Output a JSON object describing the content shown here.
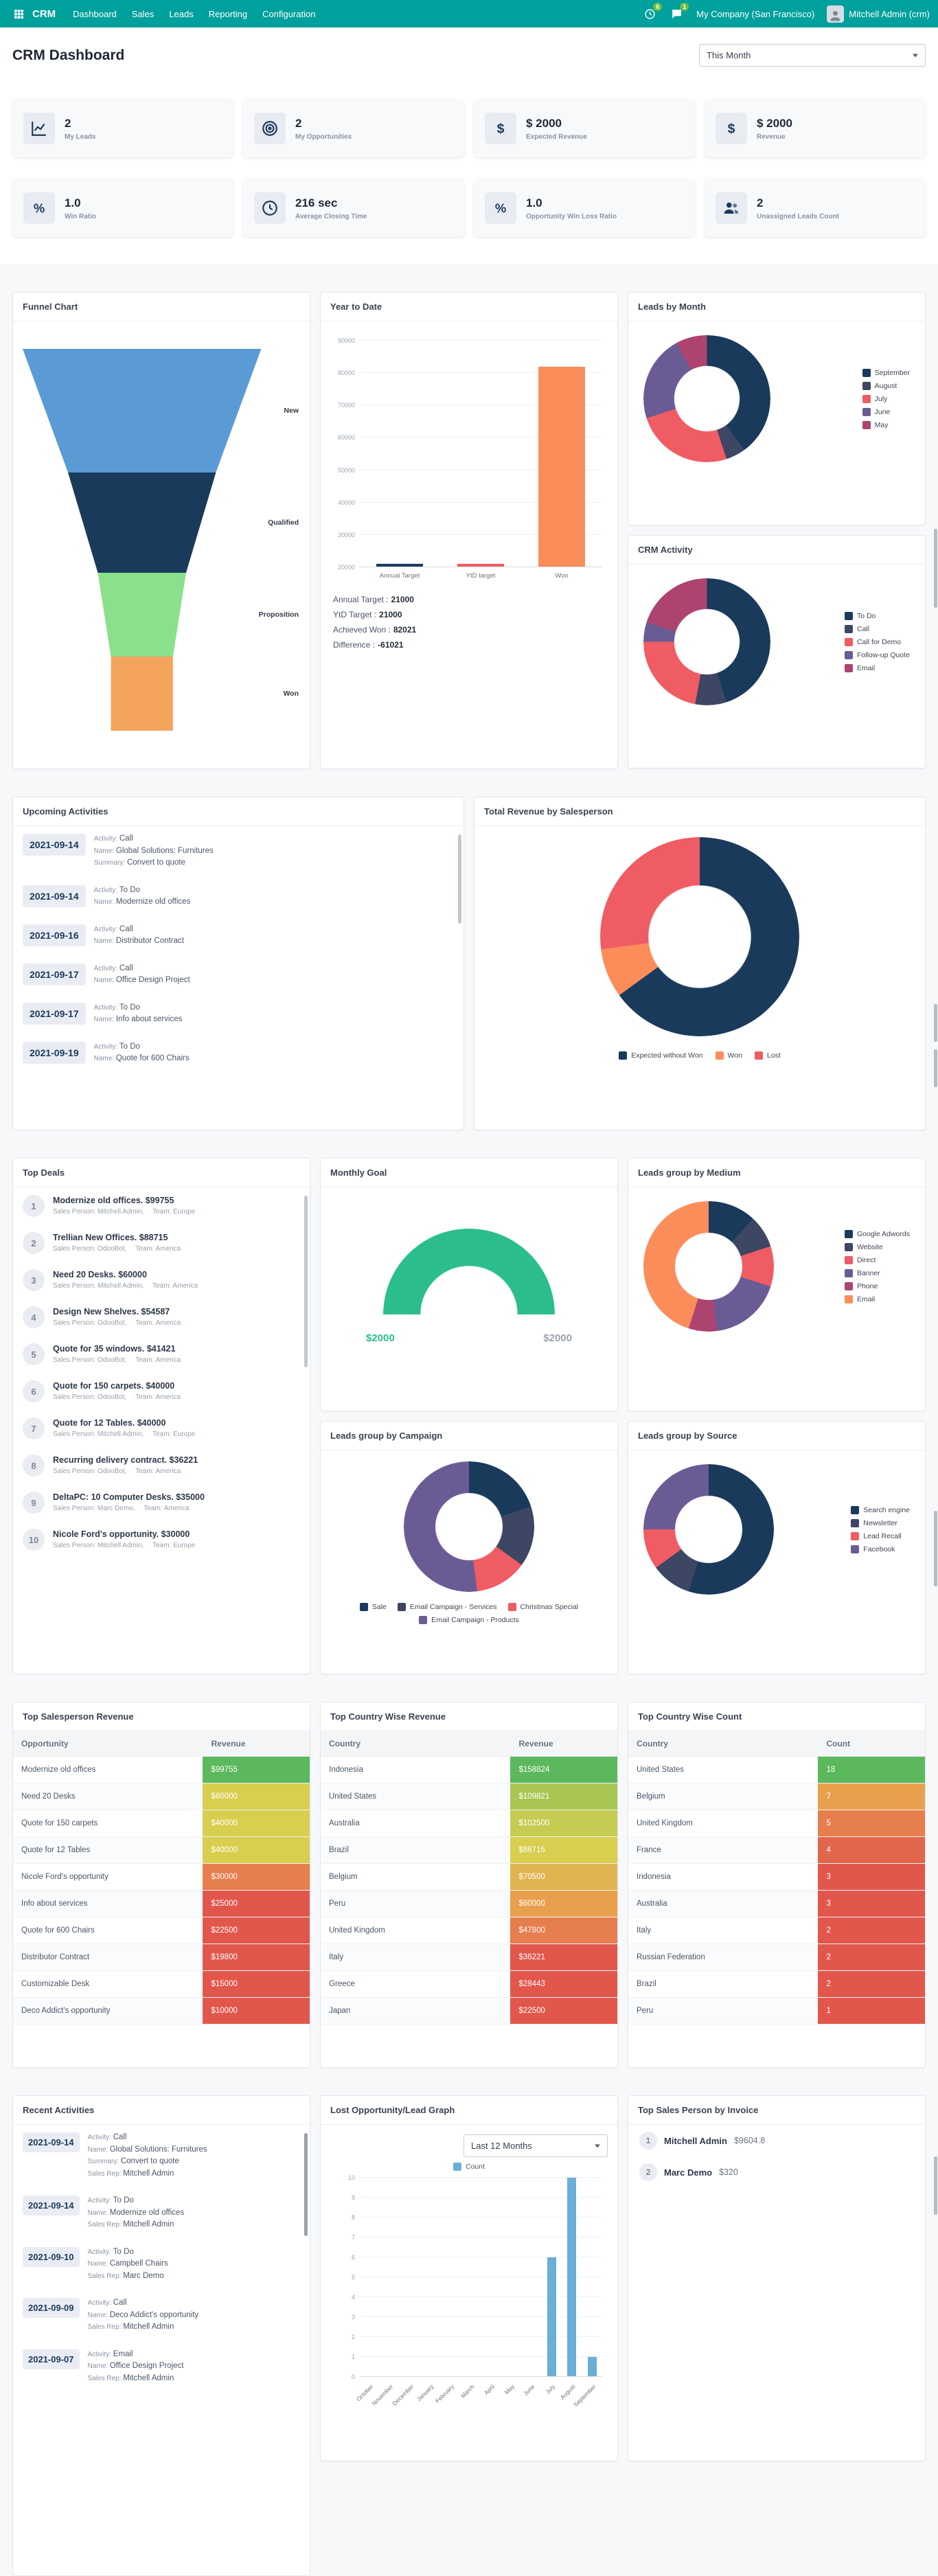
{
  "theme": {
    "navbar_bg": "#00A09D"
  },
  "navbar": {
    "brand": "CRM",
    "menu": [
      {
        "label": "Dashboard"
      },
      {
        "label": "Sales"
      },
      {
        "label": "Leads"
      },
      {
        "label": "Reporting"
      },
      {
        "label": "Configuration"
      }
    ],
    "activities_badge": "6",
    "messages_badge": "1",
    "company": "My Company (San Francisco)",
    "user": "Mitchell Admin (crm)"
  },
  "header": {
    "title": "CRM Dashboard",
    "period": "This Month"
  },
  "labels": {
    "activity": "Activity:",
    "name": "Name:",
    "summary": "Summary:",
    "sales_rep": "Sales Rep:",
    "sales_person": "Sales Person:",
    "team": "Team:"
  },
  "kpis": [
    {
      "icon": "line-chart-icon",
      "value": "2",
      "label": "My Leads"
    },
    {
      "icon": "bullseye-icon",
      "value": "2",
      "label": "My Opportunities"
    },
    {
      "icon": "dollar-icon",
      "value": "$ 2000",
      "label": "Expected Revenue"
    },
    {
      "icon": "dollar-icon",
      "value": "$ 2000",
      "label": "Revenue"
    },
    {
      "icon": "percent-icon",
      "value": "1.0",
      "label": "Win Ratio"
    },
    {
      "icon": "clock-icon",
      "value": "216 sec",
      "label": "Average Closing Time"
    },
    {
      "icon": "percent-icon",
      "value": "1.0",
      "label": "Opportunity Win Loss Ratio"
    },
    {
      "icon": "users-icon",
      "value": "2",
      "label": "Unassigned Leads Count"
    }
  ],
  "funnel": {
    "title": "Funnel Chart",
    "stages": [
      {
        "label": "New",
        "color": "#5B9BD5"
      },
      {
        "label": "Qualified",
        "color": "#1A3A5C"
      },
      {
        "label": "Proposition",
        "color": "#8BE08B"
      },
      {
        "label": "Won",
        "color": "#F5A45D"
      }
    ]
  },
  "year_to_date": {
    "title": "Year to Date",
    "chart": {
      "y_min": 20000,
      "y_max": 90000,
      "y_step": 10000,
      "bar_width": "58%",
      "bars": [
        {
          "label": "Annual Target",
          "value": 21000,
          "color": "#1A3A5C"
        },
        {
          "label": "YtD target",
          "value": 21000,
          "color": "#F05C63"
        },
        {
          "label": "Won",
          "value": 82021,
          "color": "#FB8D5B"
        }
      ]
    },
    "summary": [
      {
        "label": "Annual Target :",
        "value": "21000"
      },
      {
        "label": "YtD Target :",
        "value": "21000"
      },
      {
        "label": "Achieved Won :",
        "value": "82021"
      },
      {
        "label": "Difference :",
        "value": "-61021"
      }
    ]
  },
  "leads_by_month": {
    "title": "Leads by Month",
    "slices": [
      {
        "label": "September",
        "color": "#1A3A5C",
        "value": 40
      },
      {
        "label": "August",
        "color": "#3D4663",
        "value": 5
      },
      {
        "label": "July",
        "color": "#F05C63",
        "value": 25
      },
      {
        "label": "June",
        "color": "#6B5B95",
        "value": 22
      },
      {
        "label": "May",
        "color": "#AD4470",
        "value": 8
      }
    ]
  },
  "crm_activity": {
    "title": "CRM Activity",
    "slices": [
      {
        "label": "To Do",
        "color": "#1A3A5C",
        "value": 45
      },
      {
        "label": "Call",
        "color": "#3D4663",
        "value": 8
      },
      {
        "label": "Call for Demo",
        "color": "#F05C63",
        "value": 22
      },
      {
        "label": "Follow-up Quote",
        "color": "#6B5B95",
        "value": 5
      },
      {
        "label": "Email",
        "color": "#AD4470",
        "value": 20
      }
    ]
  },
  "upcoming_activities": {
    "title": "Upcoming Activities",
    "items": [
      {
        "date": "2021-09-14",
        "activity": "Call",
        "name": "Global Solutions: Furnitures",
        "summary": "Convert to quote"
      },
      {
        "date": "2021-09-14",
        "activity": "To Do",
        "name": "Modernize old offices"
      },
      {
        "date": "2021-09-16",
        "activity": "Call",
        "name": "Distributor Contract"
      },
      {
        "date": "2021-09-17",
        "activity": "Call",
        "name": "Office Design Project"
      },
      {
        "date": "2021-09-17",
        "activity": "To Do",
        "name": "Info about services"
      },
      {
        "date": "2021-09-19",
        "activity": "To Do",
        "name": "Quote for 600 Chairs"
      }
    ]
  },
  "total_revenue_by_salesperson": {
    "title": "Total Revenue by Salesperson",
    "slices": [
      {
        "label": "Expected without Won",
        "color": "#1A3A5C",
        "value": 65
      },
      {
        "label": "Won",
        "color": "#FB8D5B",
        "value": 8
      },
      {
        "label": "Lost",
        "color": "#F05C63",
        "value": 27
      }
    ]
  },
  "top_deals": {
    "title": "Top Deals",
    "items": [
      {
        "rank": "1",
        "title": "Modernize old offices. $99755",
        "sales_person": "Mitchell Admin,",
        "team": "Europe"
      },
      {
        "rank": "2",
        "title": "Trellian New Offices. $88715",
        "sales_person": "OdooBot,",
        "team": "America"
      },
      {
        "rank": "3",
        "title": "Need 20 Desks. $60000",
        "sales_person": "Mitchell Admin,",
        "team": "America"
      },
      {
        "rank": "4",
        "title": "Design New Shelves. $54587",
        "sales_person": "OdooBot,",
        "team": "America"
      },
      {
        "rank": "5",
        "title": "Quote for 35 windows. $41421",
        "sales_person": "OdooBot,",
        "team": "America"
      },
      {
        "rank": "6",
        "title": "Quote for 150 carpets. $40000",
        "sales_person": "OdooBot,",
        "team": "America"
      },
      {
        "rank": "7",
        "title": "Quote for 12 Tables. $40000",
        "sales_person": "Mitchell Admin,",
        "team": "Europe"
      },
      {
        "rank": "8",
        "title": "Recurring delivery contract. $36221",
        "sales_person": "OdooBot,",
        "team": "America"
      },
      {
        "rank": "9",
        "title": "DeltaPC: 10 Computer Desks. $35000",
        "sales_person": "Marc Demo,",
        "team": "America"
      },
      {
        "rank": "10",
        "title": "Nicole Ford's opportunity. $30000",
        "sales_person": "Mitchell Admin,",
        "team": "Europe"
      }
    ]
  },
  "monthly_goal": {
    "title": "Monthly Goal",
    "left_value": "$2000",
    "right_value": "$2000",
    "gauge_color": "#2BBE8C"
  },
  "leads_by_campaign": {
    "title": "Leads group by Campaign",
    "slices": [
      {
        "label": "Sale",
        "color": "#1A3A5C",
        "value": 20
      },
      {
        "label": "Email Campaign - Services",
        "color": "#3D4663",
        "value": 15
      },
      {
        "label": "Christmas Special",
        "color": "#F05C63",
        "value": 13
      },
      {
        "label": "Email Campaign - Products",
        "color": "#6B5B95",
        "value": 52
      }
    ]
  },
  "leads_by_medium": {
    "title": "Leads group by Medium",
    "slices": [
      {
        "label": "Google Adwords",
        "color": "#1A3A5C",
        "value": 12
      },
      {
        "label": "Website",
        "color": "#3D4663",
        "value": 8
      },
      {
        "label": "Direct",
        "color": "#F05C63",
        "value": 10
      },
      {
        "label": "Banner",
        "color": "#6B5B95",
        "value": 18
      },
      {
        "label": "Phone",
        "color": "#AD4470",
        "value": 7
      },
      {
        "label": "Email",
        "color": "#FB8D5B",
        "value": 45
      }
    ]
  },
  "leads_by_source": {
    "title": "Leads group by Source",
    "slices": [
      {
        "label": "Search engine",
        "color": "#1A3A5C",
        "value": 55
      },
      {
        "label": "Newsletter",
        "color": "#3D4663",
        "value": 10
      },
      {
        "label": "Lead Recall",
        "color": "#F05C63",
        "value": 10
      },
      {
        "label": "Facebook",
        "color": "#6B5B95",
        "value": 25
      }
    ]
  },
  "tables": {
    "salesperson_revenue": {
      "title": "Top Salesperson Revenue",
      "columns": [
        "Opportunity",
        "Revenue"
      ],
      "rows": [
        {
          "name": "Modernize old offices",
          "value": "$99755",
          "color": "#5CB85C"
        },
        {
          "name": "Need 20 Desks",
          "value": "$60000",
          "color": "#D8CE4F"
        },
        {
          "name": "Quote for 150 carpets",
          "value": "$40000",
          "color": "#D8CE4F"
        },
        {
          "name": "Quote for 12 Tables",
          "value": "$40000",
          "color": "#D8CE4F"
        },
        {
          "name": "Nicole Ford's opportunity",
          "value": "$30000",
          "color": "#E67E4D"
        },
        {
          "name": "Info about services",
          "value": "$25000",
          "color": "#E2574C"
        },
        {
          "name": "Quote for 600 Chairs",
          "value": "$22500",
          "color": "#E2574C"
        },
        {
          "name": "Distributor Contract",
          "value": "$19800",
          "color": "#E2574C"
        },
        {
          "name": "Customizable Desk",
          "value": "$15000",
          "color": "#E2574C"
        },
        {
          "name": "Deco Addict's opportunity",
          "value": "$10000",
          "color": "#E2574C"
        }
      ]
    },
    "country_revenue": {
      "title": "Top Country Wise Revenue",
      "columns": [
        "Country",
        "Revenue"
      ],
      "rows": [
        {
          "name": "Indonesia",
          "value": "$158824",
          "color": "#5CB85C"
        },
        {
          "name": "United States",
          "value": "$109821",
          "color": "#A9C653"
        },
        {
          "name": "Australia",
          "value": "$102500",
          "color": "#C6CB51"
        },
        {
          "name": "Brazil",
          "value": "$88715",
          "color": "#D8CE4F"
        },
        {
          "name": "Belgium",
          "value": "$70500",
          "color": "#E0B44E"
        },
        {
          "name": "Peru",
          "value": "$60000",
          "color": "#E8A04C"
        },
        {
          "name": "United Kingdom",
          "value": "$47800",
          "color": "#E67E4D"
        },
        {
          "name": "Italy",
          "value": "$36221",
          "color": "#E2574C"
        },
        {
          "name": "Greece",
          "value": "$28443",
          "color": "#E2574C"
        },
        {
          "name": "Japan",
          "value": "$22500",
          "color": "#E2574C"
        }
      ]
    },
    "country_count": {
      "title": "Top Country Wise Count",
      "columns": [
        "Country",
        "Count"
      ],
      "rows": [
        {
          "name": "United States",
          "value": "18",
          "color": "#5CB85C"
        },
        {
          "name": "Belgium",
          "value": "7",
          "color": "#E8A04C"
        },
        {
          "name": "United Kingdom",
          "value": "5",
          "color": "#E67E4D"
        },
        {
          "name": "France",
          "value": "4",
          "color": "#E2664C"
        },
        {
          "name": "Indonesia",
          "value": "3",
          "color": "#E2574C"
        },
        {
          "name": "Australia",
          "value": "3",
          "color": "#E2574C"
        },
        {
          "name": "Italy",
          "value": "2",
          "color": "#E2574C"
        },
        {
          "name": "Russian Federation",
          "value": "2",
          "color": "#E2574C"
        },
        {
          "name": "Brazil",
          "value": "2",
          "color": "#E2574C"
        },
        {
          "name": "Peru",
          "value": "1",
          "color": "#E2574C"
        }
      ]
    }
  },
  "recent_activities": {
    "title": "Recent Activities",
    "items": [
      {
        "date": "2021-09-14",
        "activity": "Call",
        "name": "Global Solutions: Furnitures",
        "summary": "Convert to quote",
        "sales_rep": "Mitchell Admin"
      },
      {
        "date": "2021-09-14",
        "activity": "To Do",
        "name": "Modernize old offices",
        "sales_rep": "Mitchell Admin"
      },
      {
        "date": "2021-09-10",
        "activity": "To Do",
        "name": "Campbell Chairs",
        "sales_rep": "Marc Demo"
      },
      {
        "date": "2021-09-09",
        "activity": "Call",
        "name": "Deco Addict's opportunity",
        "sales_rep": "Mitchell Admin"
      },
      {
        "date": "2021-09-07",
        "activity": "Email",
        "name": "Office Design Project",
        "sales_rep": "Mitchell Admin"
      }
    ]
  },
  "lost_graph": {
    "title": "Lost Opportunity/Lead Graph",
    "period": "Last 12 Months",
    "legend": "Count",
    "chart": {
      "y_min": 0,
      "y_max": 10,
      "y_step": 1,
      "rotate_labels": true,
      "bar_width": "45%",
      "bar_color": "#6BAED6",
      "bars": [
        {
          "label": "October",
          "value": 0
        },
        {
          "label": "November",
          "value": 0
        },
        {
          "label": "December",
          "value": 0
        },
        {
          "label": "January",
          "value": 0
        },
        {
          "label": "February",
          "value": 0
        },
        {
          "label": "March",
          "value": 0
        },
        {
          "label": "April",
          "value": 0
        },
        {
          "label": "May",
          "value": 0
        },
        {
          "label": "June",
          "value": 0
        },
        {
          "label": "July",
          "value": 6
        },
        {
          "label": "August",
          "value": 10
        },
        {
          "label": "September",
          "value": 1
        }
      ]
    }
  },
  "top_sales_invoice": {
    "title": "Top Sales Person by Invoice",
    "items": [
      {
        "rank": "1",
        "name": "Mitchell Admin",
        "value": "$9604.8"
      },
      {
        "rank": "2",
        "name": "Marc Demo",
        "value": "$320"
      }
    ]
  }
}
